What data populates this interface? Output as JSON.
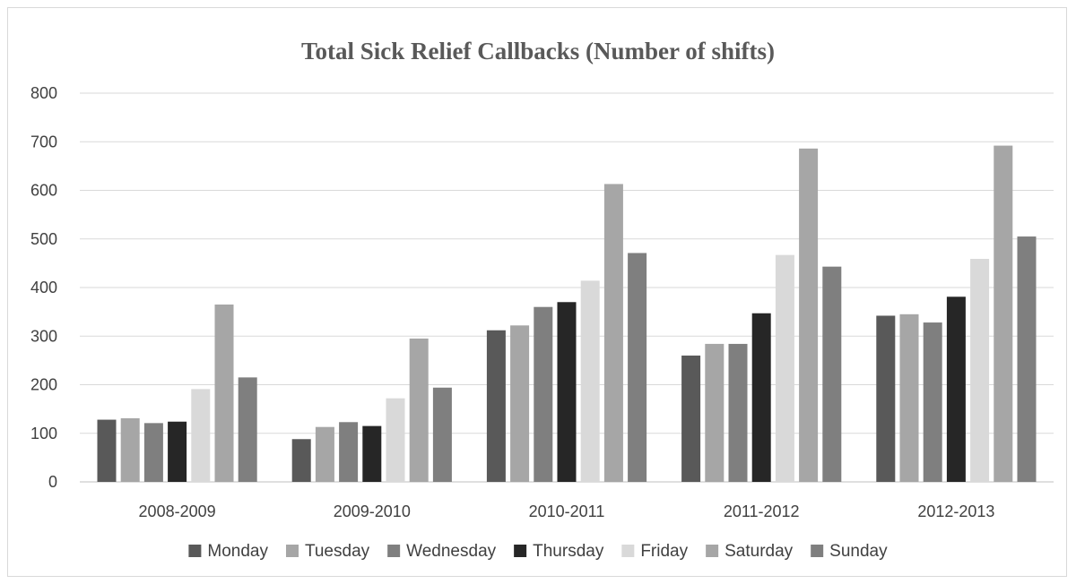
{
  "chart_data": {
    "type": "bar",
    "title": "Total Sick Relief Callbacks (Number of shifts)",
    "xlabel": "",
    "ylabel": "",
    "ylim": [
      0,
      800
    ],
    "yticks": [
      0,
      100,
      200,
      300,
      400,
      500,
      600,
      700,
      800
    ],
    "grid": true,
    "legend_position": "bottom",
    "categories": [
      "2008-2009",
      "2009-2010",
      "2010-2011",
      "2011-2012",
      "2012-2013"
    ],
    "series": [
      {
        "name": "Monday",
        "color": "#595959",
        "values": [
          128,
          88,
          312,
          260,
          342
        ]
      },
      {
        "name": "Tuesday",
        "color": "#a6a6a6",
        "values": [
          131,
          113,
          322,
          284,
          345
        ]
      },
      {
        "name": "Wednesday",
        "color": "#7f7f7f",
        "values": [
          121,
          123,
          360,
          284,
          328
        ]
      },
      {
        "name": "Thursday",
        "color": "#262626",
        "values": [
          124,
          115,
          370,
          347,
          381
        ]
      },
      {
        "name": "Friday",
        "color": "#d9d9d9",
        "values": [
          191,
          172,
          414,
          467,
          459
        ]
      },
      {
        "name": "Saturday",
        "color": "#a6a6a6",
        "values": [
          365,
          295,
          613,
          686,
          692
        ]
      },
      {
        "name": "Sunday",
        "color": "#7f7f7f",
        "values": [
          215,
          194,
          471,
          443,
          505
        ]
      }
    ]
  }
}
